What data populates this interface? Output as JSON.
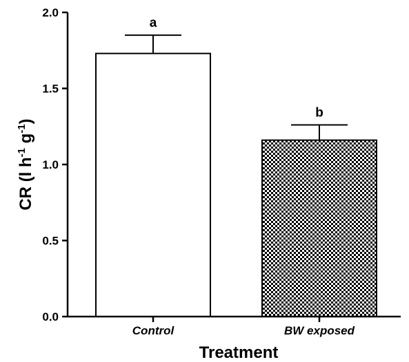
{
  "chart_data": {
    "type": "bar",
    "categories": [
      "Control",
      "BW exposed"
    ],
    "values": [
      1.73,
      1.16
    ],
    "errors": [
      0.12,
      0.1
    ],
    "significance_letters": [
      "a",
      "b"
    ],
    "bar_fills": [
      "solid-white",
      "checkerboard"
    ],
    "xlabel": "Treatment",
    "ylabel": {
      "base": "CR (l h",
      "exp1": "-1",
      "mid": " g",
      "exp2": "-1",
      "end": ")"
    },
    "ylim": [
      0,
      2.0
    ],
    "yticks": [
      "0.0",
      "0.5",
      "1.0",
      "1.5",
      "2.0"
    ],
    "grid": false,
    "colors": {
      "axis": "#000000",
      "bar_edge": "#000000",
      "pattern": "#000000"
    }
  }
}
